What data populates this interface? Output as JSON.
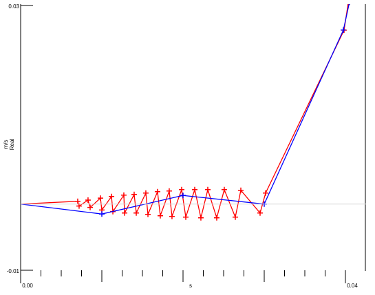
{
  "chart_data": {
    "type": "line",
    "x_label": "s",
    "y_label_unit": "m/s",
    "y_label": "Real",
    "xlim": [
      0,
      0.0425
    ],
    "ylim": [
      -0.01,
      0.03
    ],
    "xticks": [
      {
        "value": 0,
        "label": "0.00"
      },
      0.04
    ],
    "x_minor_ticks": [
      0,
      0.0025,
      0.005,
      0.0075,
      0.01,
      0.0125,
      0.015,
      0.0175,
      0.02,
      0.0225,
      0.025,
      0.0275,
      0.03,
      0.0325,
      0.035,
      0.0375,
      0.04
    ],
    "yticks": [
      -0.01,
      0.03
    ],
    "zero_line": true,
    "series": [
      {
        "name": "red",
        "color": "#ff0000",
        "x": [
          0,
          0.00703,
          0.0072,
          0.0083,
          0.00856,
          0.00983,
          0.01,
          0.01119,
          0.01136,
          0.01271,
          0.0128,
          0.01398,
          0.01424,
          0.01542,
          0.01568,
          0.01686,
          0.0172,
          0.0183,
          0.01864,
          0.01983,
          0.02034,
          0.02144,
          0.0222,
          0.02305,
          0.02415,
          0.02508,
          0.02644,
          0.02712,
          0.02949,
          0.03017,
          0.03983,
          0.04034
        ],
        "values": [
          0,
          0.00042,
          -0.0003,
          0.0006,
          -0.0005,
          0.0009,
          -0.0009,
          0.00114,
          -0.00114,
          0.00135,
          -0.00135,
          0.00145,
          -0.00135,
          0.00166,
          -0.00156,
          0.00187,
          -0.00177,
          0.00197,
          -0.00187,
          0.00218,
          -0.00197,
          0.00218,
          -0.00208,
          0.00218,
          -0.00208,
          0.00218,
          -0.00197,
          0.00208,
          -0.00135,
          0.00166,
          0.02627,
          0.03032
        ]
      },
      {
        "name": "blue",
        "color": "#0000ff",
        "x": [
          0,
          0.01,
          0.02,
          0.03,
          0.03975,
          0.0405
        ],
        "values": [
          0,
          -0.0015,
          0.0013,
          0,
          0.0263,
          0.0305
        ]
      }
    ]
  }
}
